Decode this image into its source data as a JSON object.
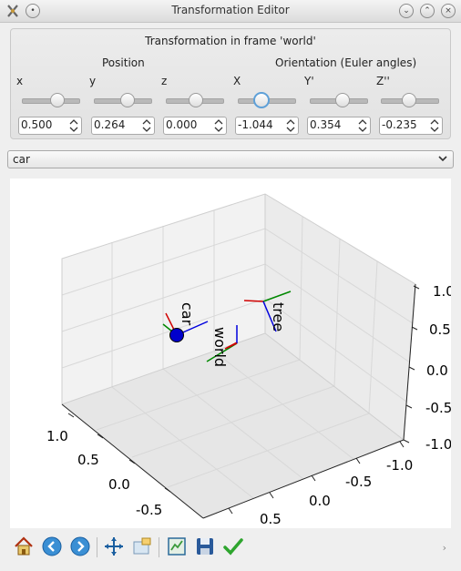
{
  "window": {
    "title": "Transformation Editor"
  },
  "group": {
    "title": "Transformation in frame 'world'",
    "position_label": "Position",
    "orientation_label": "Orientation (Euler angles)"
  },
  "axes": [
    {
      "label": "x",
      "value": "0.500",
      "slider": 0.62
    },
    {
      "label": "y",
      "value": "0.264",
      "slider": 0.58
    },
    {
      "label": "z",
      "value": "0.000",
      "slider": 0.5
    },
    {
      "label": "X",
      "value": "-1.044",
      "slider": 0.33
    },
    {
      "label": "Y'",
      "value": "0.354",
      "slider": 0.56
    },
    {
      "label": "Z''",
      "value": "-0.235",
      "slider": 0.46
    }
  ],
  "frame_select": {
    "value": "car"
  },
  "plot": {
    "frames": [
      "car",
      "world",
      "tree"
    ],
    "axis_ticks_right": [
      "1.0",
      "0.5",
      "0.0",
      "-0.5",
      "-1.0"
    ],
    "axis_ticks_bottom_right": [
      "-1.0",
      "-0.5",
      "0.0",
      "0.5"
    ],
    "axis_ticks_left": [
      "1.0",
      "0.5",
      "0.0",
      "-0.5"
    ]
  },
  "toolbar": {
    "items": [
      {
        "name": "home-icon"
      },
      {
        "name": "back-icon"
      },
      {
        "name": "forward-icon"
      },
      {
        "name": "pan-icon"
      },
      {
        "name": "zoom-icon"
      },
      {
        "name": "subplots-icon"
      },
      {
        "name": "save-icon"
      },
      {
        "name": "apply-icon"
      }
    ],
    "more": "›"
  }
}
